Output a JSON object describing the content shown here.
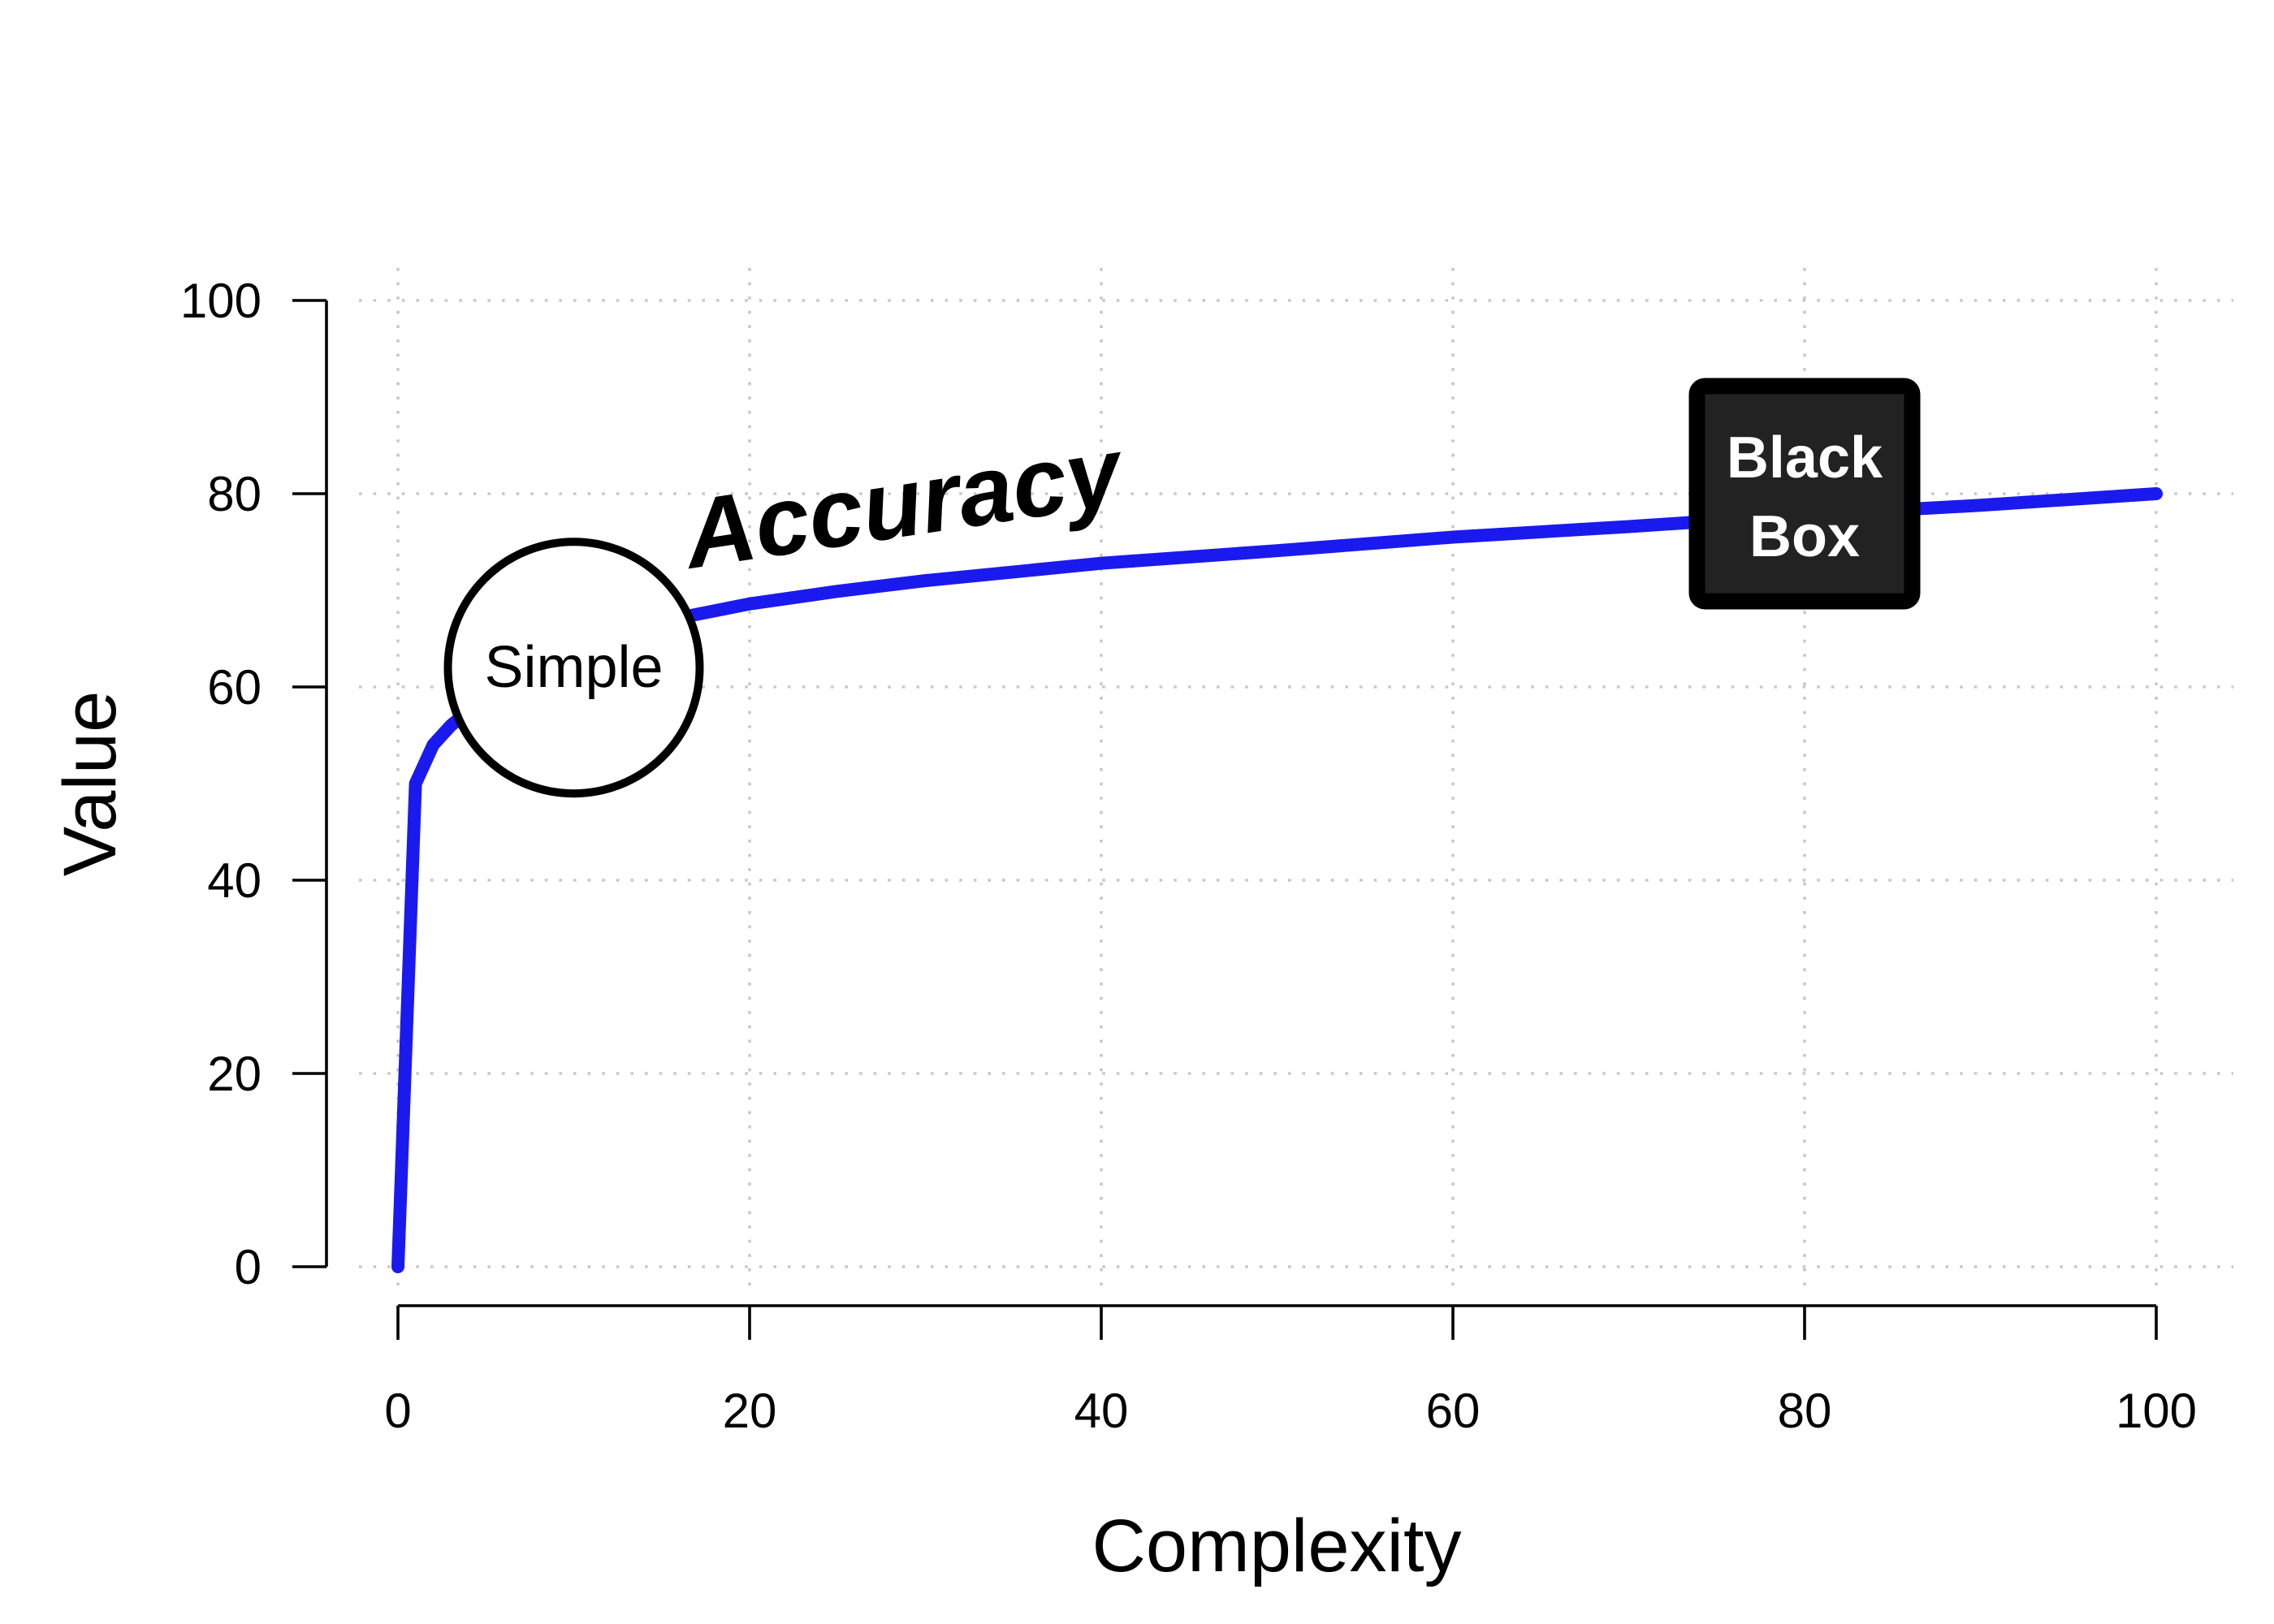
{
  "chart_data": {
    "type": "line",
    "xlabel": "Complexity",
    "ylabel": "Value",
    "xlim": [
      0,
      100
    ],
    "ylim": [
      0,
      100
    ],
    "x_ticks": [
      0,
      20,
      40,
      60,
      80,
      100
    ],
    "y_ticks": [
      0,
      20,
      40,
      60,
      80,
      100
    ],
    "grid": true,
    "series": [
      {
        "name": "Accuracy",
        "color": "#1a1aee",
        "x": [
          0,
          1,
          2,
          3,
          4,
          5,
          7,
          10,
          15,
          20,
          25,
          30,
          40,
          50,
          60,
          70,
          80,
          90,
          100
        ],
        "y": [
          0,
          50,
          54,
          56,
          57.5,
          58.8,
          61,
          63.9,
          66.8,
          68.6,
          69.9,
          71,
          72.8,
          74.1,
          75.5,
          76.6,
          77.8,
          78.8,
          80
        ]
      }
    ],
    "annotations": [
      {
        "id": "simple",
        "shape": "circle",
        "text": "Simple",
        "x": 10,
        "y": 62
      },
      {
        "id": "blackbox",
        "shape": "box",
        "lines": [
          "Black",
          "Box"
        ],
        "x": 80,
        "y": 80
      }
    ]
  }
}
